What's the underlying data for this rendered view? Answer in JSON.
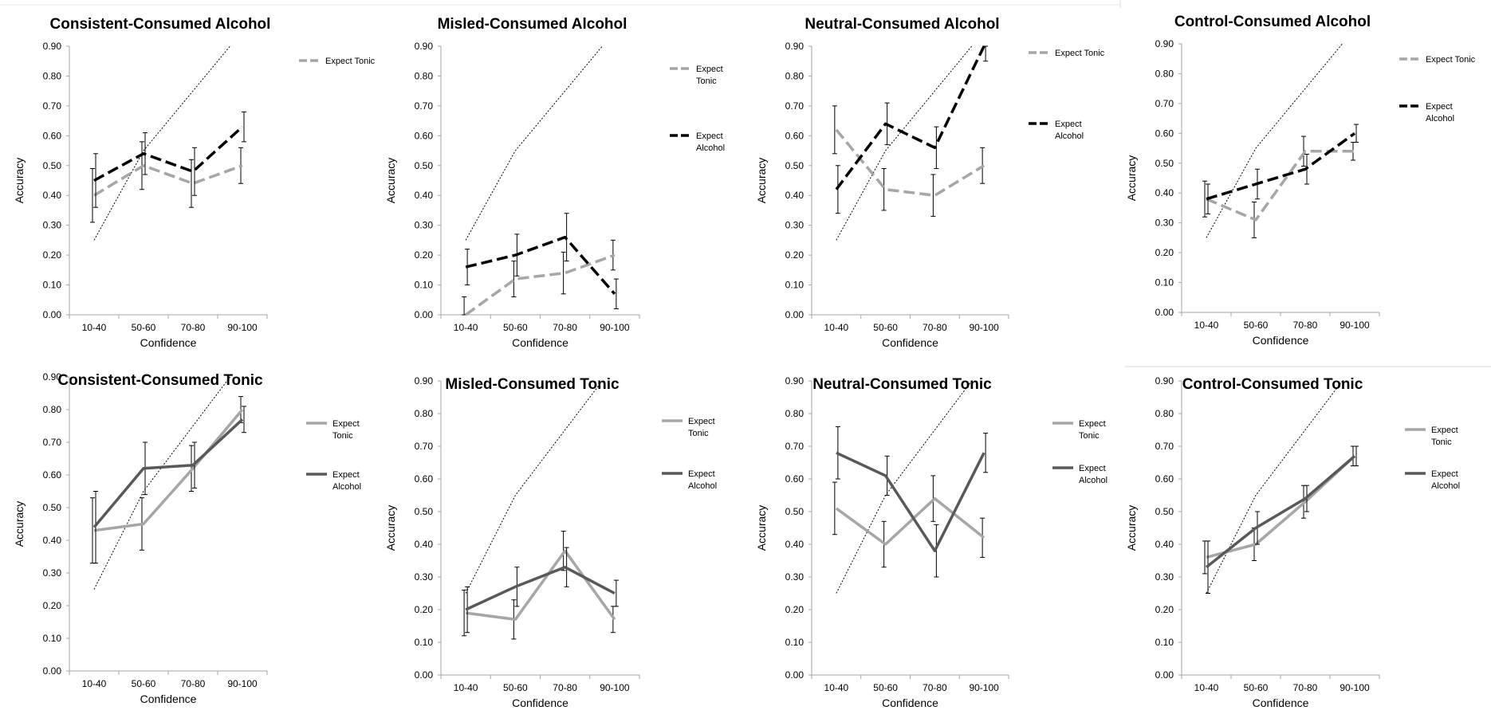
{
  "colors": {
    "alcohol_expect_tonic": "#a6a6a6",
    "alcohol_expect_alcohol": "#000000",
    "tonic_expect_tonic": "#a6a6a6",
    "tonic_expect_alcohol": "#595959"
  },
  "chart_data": [
    {
      "type": "line",
      "title": "Consistent-Consumed Alcohol",
      "xlabel": "Confidence",
      "ylabel": "Accuracy",
      "categories": [
        "10-40",
        "50-60",
        "70-80",
        "90-100"
      ],
      "yticks": [
        "0.00",
        "0.10",
        "0.20",
        "0.30",
        "0.40",
        "0.50",
        "0.60",
        "0.70",
        "0.80",
        "0.90"
      ],
      "ylim": [
        0,
        0.9
      ],
      "line_style": "dashed",
      "legend_position": "top-right",
      "reference_line": [
        0.25,
        0.55,
        0.75,
        0.95
      ],
      "series": [
        {
          "name": "Expect Tonic",
          "legend_lines": [
            "Expect Tonic"
          ],
          "color_key": "alcohol_expect_tonic",
          "values": [
            0.4,
            0.5,
            0.44,
            0.5
          ],
          "err": [
            0.09,
            0.08,
            0.08,
            0.06
          ]
        },
        {
          "name": "",
          "legend_lines": [],
          "color_key": "alcohol_expect_alcohol",
          "values": [
            0.45,
            0.54,
            0.48,
            0.63
          ],
          "err": [
            0.09,
            0.07,
            0.08,
            0.05
          ]
        }
      ]
    },
    {
      "type": "line",
      "title": "Misled-Consumed Alcohol",
      "xlabel": "Confidence",
      "ylabel": "Accuracy",
      "categories": [
        "10-40",
        "50-60",
        "70-80",
        "90-100"
      ],
      "yticks": [
        "0.00",
        "0.10",
        "0.20",
        "0.30",
        "0.40",
        "0.50",
        "0.60",
        "0.70",
        "0.80",
        "0.90"
      ],
      "ylim": [
        0,
        0.9
      ],
      "line_style": "dashed",
      "legend_position": "right",
      "reference_line": [
        0.25,
        0.55,
        0.75,
        0.95
      ],
      "series": [
        {
          "name": "Expect Tonic",
          "legend_lines": [
            "Expect",
            "Tonic"
          ],
          "color_key": "alcohol_expect_tonic",
          "values": [
            0.0,
            0.12,
            0.14,
            0.2
          ],
          "err": [
            0.06,
            0.06,
            0.07,
            0.05
          ]
        },
        {
          "name": "Expect Alcohol",
          "legend_lines": [
            "Expect",
            "Alcohol"
          ],
          "color_key": "alcohol_expect_alcohol",
          "values": [
            0.16,
            0.2,
            0.26,
            0.07
          ],
          "err": [
            0.06,
            0.07,
            0.08,
            0.05
          ]
        }
      ]
    },
    {
      "type": "line",
      "title": "Neutral-Consumed Alcohol",
      "xlabel": "Confidence",
      "ylabel": "Accuracy",
      "categories": [
        "10-40",
        "50-60",
        "70-80",
        "90-100"
      ],
      "yticks": [
        "0.00",
        "0.10",
        "0.20",
        "0.30",
        "0.40",
        "0.50",
        "0.60",
        "0.70",
        "0.80",
        "0.90"
      ],
      "ylim": [
        0,
        0.9
      ],
      "line_style": "dashed",
      "legend_position": "right",
      "reference_line": [
        0.25,
        0.55,
        0.75,
        0.95
      ],
      "series": [
        {
          "name": "Expect Tonic",
          "legend_lines": [
            "Expect Tonic"
          ],
          "color_key": "alcohol_expect_tonic",
          "values": [
            0.62,
            0.42,
            0.4,
            0.5
          ],
          "err": [
            0.08,
            0.07,
            0.07,
            0.06
          ]
        },
        {
          "name": "Expect Alcohol",
          "legend_lines": [
            "Expect",
            "Alcohol"
          ],
          "color_key": "alcohol_expect_alcohol",
          "values": [
            0.42,
            0.64,
            0.56,
            0.9
          ],
          "err": [
            0.08,
            0.07,
            0.07,
            0.05
          ]
        }
      ]
    },
    {
      "type": "line",
      "title": "Control-Consumed Alcohol",
      "xlabel": "Confidence",
      "ylabel": "Accuracy",
      "categories": [
        "10-40",
        "50-60",
        "70-80",
        "90-100"
      ],
      "yticks": [
        "0.00",
        "0.10",
        "0.20",
        "0.30",
        "0.40",
        "0.50",
        "0.60",
        "0.70",
        "0.80",
        "0.90"
      ],
      "ylim": [
        0,
        0.9
      ],
      "line_style": "dashed",
      "legend_position": "right",
      "reference_line": [
        0.25,
        0.55,
        0.75,
        0.95
      ],
      "series": [
        {
          "name": "Expect Tonic",
          "legend_lines": [
            "Expect Tonic"
          ],
          "color_key": "alcohol_expect_tonic",
          "values": [
            0.38,
            0.31,
            0.54,
            0.54
          ],
          "err": [
            0.06,
            0.06,
            0.05,
            0.03
          ]
        },
        {
          "name": "Expect Alcohol",
          "legend_lines": [
            "Expect",
            "Alcohol"
          ],
          "color_key": "alcohol_expect_alcohol",
          "values": [
            0.38,
            0.43,
            0.48,
            0.6
          ],
          "err": [
            0.05,
            0.05,
            0.05,
            0.03
          ]
        }
      ]
    },
    {
      "type": "line",
      "title": "Consistent-Consumed Tonic",
      "xlabel": "Confidence",
      "ylabel": "Accuracy",
      "categories": [
        "10-40",
        "50-60",
        "70-80",
        "90-100"
      ],
      "yticks": [
        "0.00",
        "0.10",
        "0.20",
        "0.30",
        "0.40",
        "0.50",
        "0.60",
        "0.70",
        "0.80",
        "0.90"
      ],
      "ylim": [
        0,
        0.9
      ],
      "line_style": "solid",
      "legend_position": "right",
      "reference_line": [
        0.25,
        0.55,
        0.75,
        0.95
      ],
      "series": [
        {
          "name": "Expect Tonic",
          "legend_lines": [
            "Expect",
            "Tonic"
          ],
          "color_key": "tonic_expect_tonic",
          "values": [
            0.43,
            0.45,
            0.62,
            0.8
          ],
          "err": [
            0.1,
            0.08,
            0.07,
            0.04
          ]
        },
        {
          "name": "Expect Alcohol",
          "legend_lines": [
            "Expect",
            "Alcohol"
          ],
          "color_key": "tonic_expect_alcohol",
          "values": [
            0.44,
            0.62,
            0.63,
            0.77
          ],
          "err": [
            0.11,
            0.08,
            0.07,
            0.04
          ]
        }
      ]
    },
    {
      "type": "line",
      "title": "Misled-Consumed Tonic",
      "xlabel": "Confidence",
      "ylabel": "Accuracy",
      "categories": [
        "10-40",
        "50-60",
        "70-80",
        "90-100"
      ],
      "yticks": [
        "0.00",
        "0.10",
        "0.20",
        "0.30",
        "0.40",
        "0.50",
        "0.60",
        "0.70",
        "0.80",
        "0.90"
      ],
      "ylim": [
        0,
        0.9
      ],
      "line_style": "solid",
      "legend_position": "right",
      "reference_line": [
        0.25,
        0.55,
        0.75,
        0.95
      ],
      "series": [
        {
          "name": "Expect Tonic",
          "legend_lines": [
            "Expect",
            "Tonic"
          ],
          "color_key": "tonic_expect_tonic",
          "values": [
            0.19,
            0.17,
            0.38,
            0.17
          ],
          "err": [
            0.07,
            0.06,
            0.06,
            0.04
          ]
        },
        {
          "name": "Expect Alcohol",
          "legend_lines": [
            "Expect",
            "Alcohol"
          ],
          "color_key": "tonic_expect_alcohol",
          "values": [
            0.2,
            0.27,
            0.33,
            0.25
          ],
          "err": [
            0.07,
            0.06,
            0.06,
            0.04
          ]
        }
      ]
    },
    {
      "type": "line",
      "title": "Neutral-Consumed Tonic",
      "xlabel": "Confidence",
      "ylabel": "Accuracy",
      "categories": [
        "10-40",
        "50-60",
        "70-80",
        "90-100"
      ],
      "yticks": [
        "0.00",
        "0.10",
        "0.20",
        "0.30",
        "0.40",
        "0.50",
        "0.60",
        "0.70",
        "0.80",
        "0.90"
      ],
      "ylim": [
        0,
        0.9
      ],
      "line_style": "solid",
      "legend_position": "right",
      "reference_line": [
        0.25,
        0.55,
        0.75,
        0.95
      ],
      "series": [
        {
          "name": "Expect Tonic",
          "legend_lines": [
            "Expect",
            "Tonic"
          ],
          "color_key": "tonic_expect_tonic",
          "values": [
            0.51,
            0.4,
            0.54,
            0.42
          ],
          "err": [
            0.08,
            0.07,
            0.07,
            0.06
          ]
        },
        {
          "name": "Expect Alcohol",
          "legend_lines": [
            "Expect",
            "Alcohol"
          ],
          "color_key": "tonic_expect_alcohol",
          "values": [
            0.68,
            0.61,
            0.38,
            0.68
          ],
          "err": [
            0.08,
            0.06,
            0.08,
            0.06
          ]
        }
      ]
    },
    {
      "type": "line",
      "title": "Control-Consumed Tonic",
      "xlabel": "Confidence",
      "ylabel": "Accuracy",
      "categories": [
        "10-40",
        "50-60",
        "70-80",
        "90-100"
      ],
      "yticks": [
        "0.00",
        "0.10",
        "0.20",
        "0.30",
        "0.40",
        "0.50",
        "0.60",
        "0.70",
        "0.80",
        "0.90"
      ],
      "ylim": [
        0,
        0.9
      ],
      "line_style": "solid",
      "legend_position": "right",
      "reference_line": [
        0.25,
        0.55,
        0.75,
        0.95
      ],
      "series": [
        {
          "name": "Expect Tonic",
          "legend_lines": [
            "Expect",
            "Tonic"
          ],
          "color_key": "tonic_expect_tonic",
          "values": [
            0.36,
            0.4,
            0.53,
            0.67
          ],
          "err": [
            0.05,
            0.05,
            0.05,
            0.03
          ]
        },
        {
          "name": "Expect Alcohol",
          "legend_lines": [
            "Expect",
            "Alcohol"
          ],
          "color_key": "tonic_expect_alcohol",
          "values": [
            0.33,
            0.45,
            0.54,
            0.67
          ],
          "err": [
            0.08,
            0.05,
            0.04,
            0.03
          ]
        }
      ]
    }
  ]
}
